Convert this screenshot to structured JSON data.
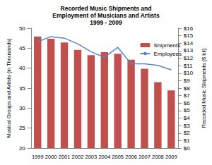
{
  "chart_data": {
    "type": "bar",
    "title": "Recorded Music Shipments and\nEmployment of Musicians and Artists\n1999 - 2009",
    "categories": [
      "1999",
      "2000",
      "2001",
      "2002",
      "2003",
      "2004",
      "2005",
      "2006",
      "2007",
      "2008",
      "2009"
    ],
    "series": [
      {
        "name": "Shipments",
        "type": "bar",
        "axis": "y2",
        "color": "#c0504d",
        "values": [
          14.9,
          14.6,
          14.1,
          13.1,
          12.4,
          12.8,
          12.6,
          11.8,
          10.6,
          8.8,
          7.7
        ]
      },
      {
        "name": "Employees",
        "type": "line",
        "color": "#5b84be",
        "values": [
          46.6,
          47.9,
          47.5,
          46.1,
          44.1,
          42.7,
          45.2,
          41.1,
          41.1,
          40.7,
          39.6
        ]
      }
    ],
    "ylabel": "Musical Groups and Artists (in Thousands)",
    "y2label": "Recorded Music Shipments ($ bil)",
    "ylim": [
      20,
      50
    ],
    "yticks": [
      20,
      25,
      30,
      35,
      40,
      45,
      50
    ],
    "y2lim": [
      0,
      16
    ],
    "y2ticks": [
      {
        "value": 0,
        "label": "$0"
      },
      {
        "value": 1,
        "label": "$1"
      },
      {
        "value": 2,
        "label": "$2"
      },
      {
        "value": 3,
        "label": "$3"
      },
      {
        "value": 4,
        "label": "$4"
      },
      {
        "value": 5,
        "label": "$5"
      },
      {
        "value": 6,
        "label": "$6"
      },
      {
        "value": 7,
        "label": "$7"
      },
      {
        "value": 8,
        "label": "$8"
      },
      {
        "value": 9,
        "label": "$9"
      },
      {
        "value": 10,
        "label": "$10"
      },
      {
        "value": 11,
        "label": "$11"
      },
      {
        "value": 12,
        "label": "$12"
      },
      {
        "value": 13,
        "label": "$13"
      },
      {
        "value": 14,
        "label": "$14"
      },
      {
        "value": 15,
        "label": "$15"
      },
      {
        "value": 16,
        "label": "$16"
      }
    ],
    "grid": false,
    "legend": "right"
  }
}
